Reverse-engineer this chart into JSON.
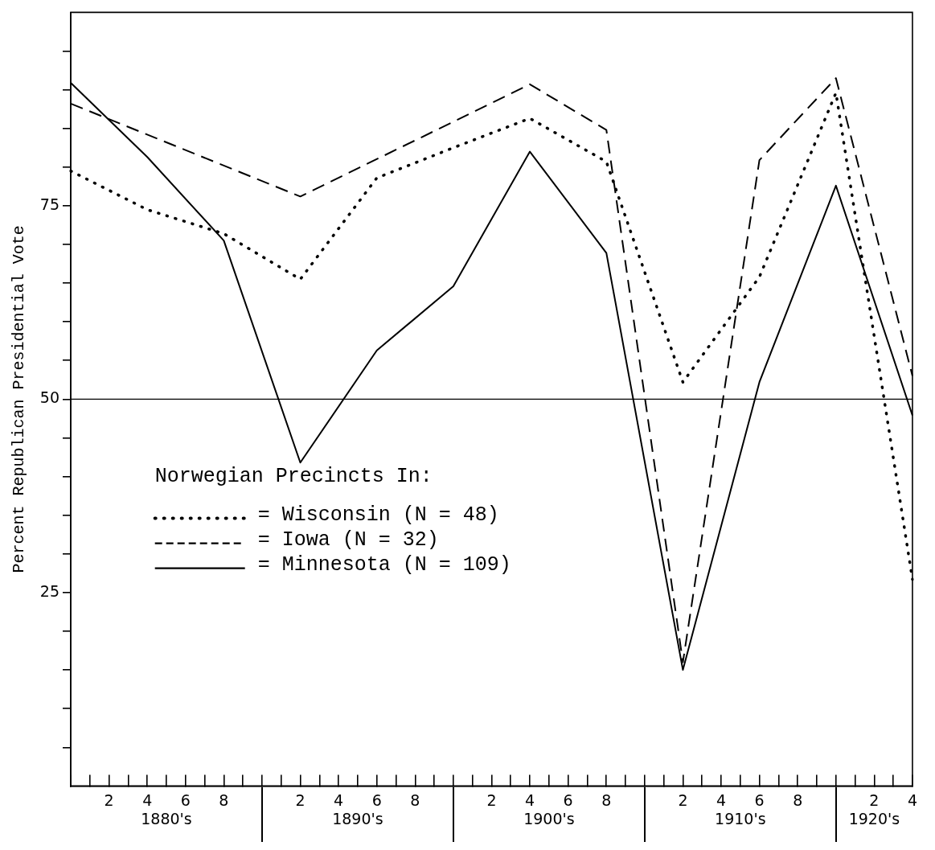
{
  "chart_data": {
    "type": "line",
    "ylabel": "Percent Republican Presidential Vote",
    "legend_title": "Norwegian Precincts In:",
    "legend": "center left",
    "marker": "none",
    "grid": false,
    "categories": [
      null,
      null,
      "2",
      null,
      "4",
      "\n1880's",
      "6",
      null,
      "8",
      null,
      null,
      null,
      "2",
      null,
      "4",
      "\n1890's",
      "6",
      null,
      "8",
      null,
      null,
      null,
      "2",
      null,
      "4",
      "\n1900's",
      "6",
      null,
      "8",
      null,
      null,
      null,
      "2",
      null,
      "4",
      "\n1910's",
      "6",
      null,
      "8",
      null,
      null,
      null,
      "2\n1920's",
      null,
      "4"
    ],
    "ylim": [
      0,
      100
    ],
    "yticks": [
      {
        "value": 5,
        "label": null
      },
      {
        "value": 10,
        "label": null
      },
      {
        "value": 15,
        "label": null
      },
      {
        "value": 20,
        "label": null
      },
      25,
      {
        "value": 30,
        "label": null
      },
      {
        "value": 35,
        "label": null
      },
      {
        "value": 40,
        "label": null
      },
      {
        "value": 45,
        "label": null
      },
      50,
      {
        "value": 55,
        "label": null
      },
      {
        "value": 60,
        "label": null
      },
      {
        "value": 65,
        "label": null
      },
      {
        "value": 70,
        "label": null
      },
      75,
      {
        "value": 80,
        "label": null
      },
      {
        "value": 85,
        "label": null
      },
      {
        "value": 90,
        "label": null
      },
      {
        "value": 95,
        "label": null
      }
    ],
    "ref_lines": [
      {
        "axis": "y",
        "value": 50,
        "color": "#000000",
        "line_style": "solid"
      }
    ],
    "series": [
      {
        "name": "= Wisconsin (N = 48)",
        "color": "#000000",
        "line_style": "dotted",
        "values": [
          79.5,
          null,
          null,
          null,
          74.5,
          null,
          null,
          null,
          71.4,
          null,
          null,
          null,
          65.5,
          null,
          null,
          null,
          78.6,
          null,
          null,
          null,
          82.5,
          null,
          null,
          null,
          86.3,
          null,
          null,
          null,
          80.7,
          null,
          null,
          null,
          52.2,
          null,
          null,
          null,
          65.8,
          null,
          null,
          null,
          89.6,
          null,
          null,
          null,
          26.7
        ]
      },
      {
        "name": "= Iowa (N = 32)",
        "color": "#000000",
        "line_style": "dashed",
        "values": [
          88.2,
          null,
          null,
          null,
          null,
          null,
          null,
          null,
          null,
          null,
          null,
          null,
          76.2,
          null,
          null,
          null,
          null,
          null,
          null,
          null,
          null,
          null,
          null,
          null,
          90.7,
          null,
          null,
          null,
          84.8,
          null,
          null,
          null,
          16,
          null,
          null,
          null,
          80.9,
          null,
          null,
          null,
          91.5,
          null,
          null,
          null,
          53
        ]
      },
      {
        "name": "= Minnesota (N = 109)",
        "color": "#000000",
        "line_style": "solid",
        "values": [
          90.9,
          null,
          null,
          null,
          81.3,
          null,
          null,
          null,
          70.5,
          null,
          null,
          null,
          41.8,
          null,
          null,
          null,
          56.3,
          null,
          null,
          null,
          64.6,
          null,
          null,
          null,
          82,
          null,
          null,
          null,
          68.9,
          null,
          null,
          null,
          15,
          null,
          null,
          null,
          52.2,
          null,
          null,
          null,
          77.6,
          null,
          null,
          null,
          47.9
        ]
      }
    ]
  }
}
